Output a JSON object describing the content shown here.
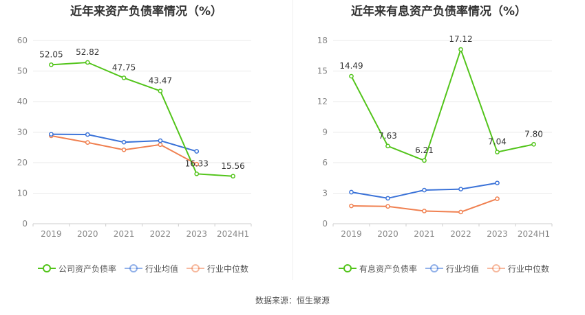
{
  "titles": {
    "left": "近年来资产负债率情况（%）",
    "right": "近年来有息资产负债率情况（%）"
  },
  "source": "数据来源：恒生聚源",
  "colors": {
    "company": "#52c41a",
    "industry_avg": "#3a72d8",
    "industry_median": "#f08050",
    "grid": "#e8e8e8",
    "axis_text": "#888888",
    "label_text": "#333333"
  },
  "chart_data": [
    {
      "type": "line",
      "title": "近年来资产负债率情况（%）",
      "categories": [
        "2019",
        "2020",
        "2021",
        "2022",
        "2023",
        "2024H1"
      ],
      "ylim": [
        0,
        60
      ],
      "yticks": [
        0,
        10,
        20,
        30,
        40,
        50,
        60
      ],
      "grid": true,
      "legend_position": "bottom",
      "series": [
        {
          "name": "公司资产负债率",
          "color": "#52c41a",
          "labeled": true,
          "values": [
            52.05,
            52.82,
            47.75,
            43.47,
            16.33,
            15.56
          ],
          "labels": [
            "52.05",
            "52.82",
            "47.75",
            "43.47",
            "16.33",
            "15.56"
          ]
        },
        {
          "name": "行业均值",
          "color": "#3a72d8",
          "labeled": false,
          "values": [
            29.3,
            29.2,
            26.7,
            27.2,
            23.7,
            null
          ]
        },
        {
          "name": "行业中位数",
          "color": "#f08050",
          "labeled": false,
          "values": [
            28.8,
            26.6,
            24.2,
            25.9,
            19.5,
            null
          ]
        }
      ]
    },
    {
      "type": "line",
      "title": "近年来有息资产负债率情况（%）",
      "categories": [
        "2019",
        "2020",
        "2021",
        "2022",
        "2023",
        "2024H1"
      ],
      "ylim": [
        0,
        18
      ],
      "yticks": [
        0,
        3,
        6,
        9,
        12,
        15,
        18
      ],
      "grid": true,
      "legend_position": "bottom",
      "series": [
        {
          "name": "有息资产负债率",
          "color": "#52c41a",
          "labeled": true,
          "values": [
            14.49,
            7.63,
            6.21,
            17.12,
            7.04,
            7.8
          ],
          "labels": [
            "14.49",
            "7.63",
            "6.21",
            "17.12",
            "7.04",
            "7.80"
          ]
        },
        {
          "name": "行业均值",
          "color": "#3a72d8",
          "labeled": false,
          "values": [
            3.1,
            2.5,
            3.3,
            3.4,
            4.0,
            null
          ]
        },
        {
          "name": "行业中位数",
          "color": "#f08050",
          "labeled": false,
          "values": [
            1.75,
            1.7,
            1.25,
            1.15,
            2.45,
            null
          ]
        }
      ]
    }
  ]
}
